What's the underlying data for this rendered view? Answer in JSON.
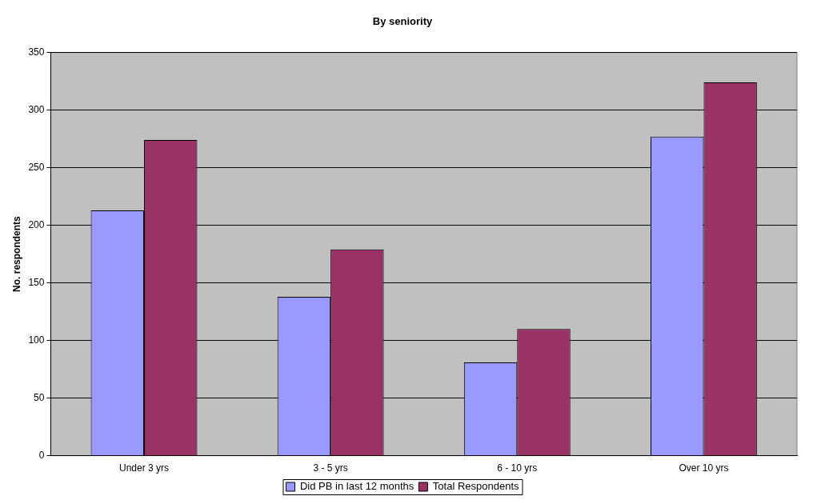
{
  "chart_data": {
    "type": "bar",
    "title": "By seniority",
    "ylabel": "No. respondents",
    "categories": [
      "Under 3 yrs",
      "3 - 5 yrs",
      "6 - 10 yrs",
      "Over 10 yrs"
    ],
    "series": [
      {
        "name": "Did PB in last 12 months",
        "color": "#9999ff",
        "values": [
          213,
          138,
          81,
          277
        ]
      },
      {
        "name": "Total Respondents",
        "color": "#993366",
        "values": [
          274,
          179,
          110,
          324
        ]
      }
    ],
    "ylim": [
      0,
      350
    ],
    "yticks": [
      0,
      50,
      100,
      150,
      200,
      250,
      300,
      350
    ],
    "grid": "y",
    "legend": "bottom"
  }
}
